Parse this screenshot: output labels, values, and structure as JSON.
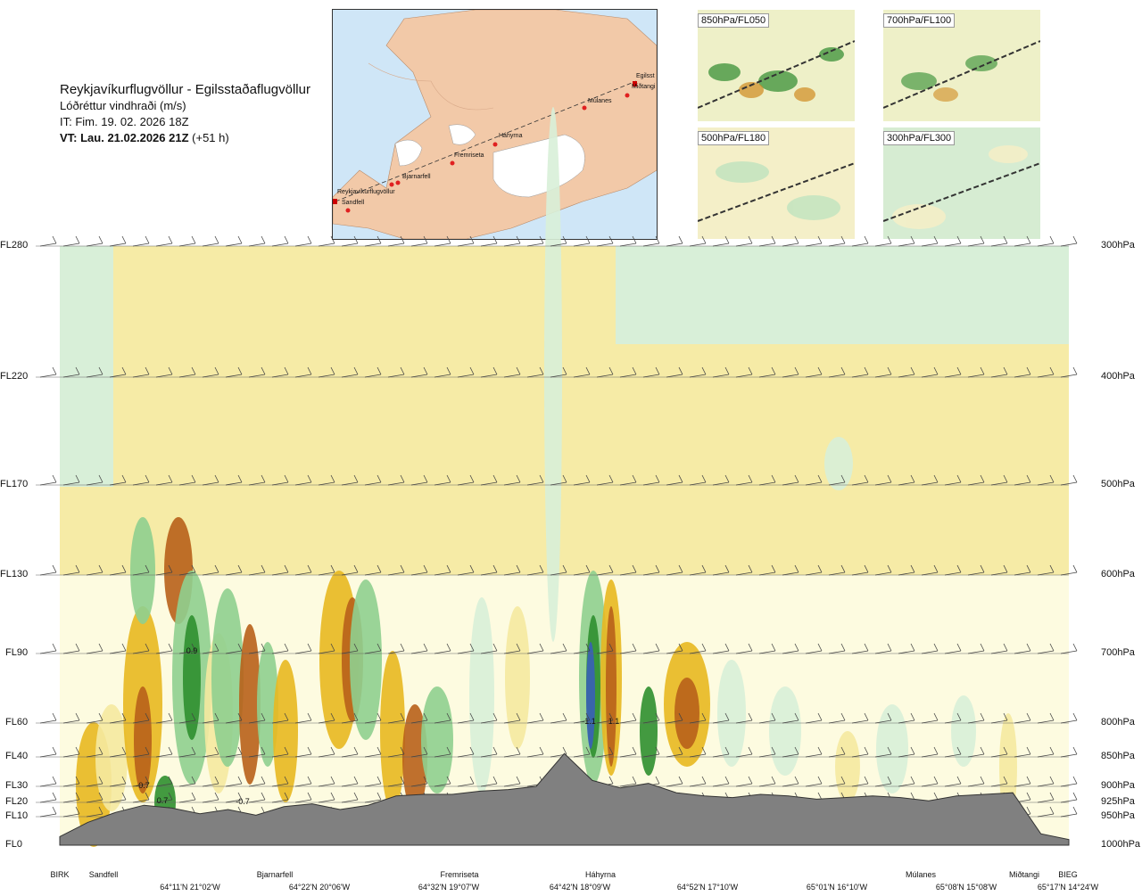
{
  "header": {
    "route": "Reykjavíkurflugvöllur - Egilsstaðaflugvöllur",
    "parameter": "Lóðréttur vindhraði (m/s)",
    "issue_time": "IT: Fim. 19. 02. 2026 18Z",
    "valid_time_bold": "VT: Lau. 21.02.2026 21Z",
    "valid_time_offset": "(+51 h)"
  },
  "map": {
    "places": [
      "Reykjavíkurflugvöllur",
      "Sandfell",
      "Bjarnarfell",
      "Fremriseta",
      "Háhyrna",
      "Múlanes",
      "Egilsst",
      "Miðtangi"
    ],
    "colors": {
      "sea": "#cfe6f7",
      "land": "#f2c9a8",
      "ice": "#ffffff",
      "route": "#333333",
      "point": "#e02020"
    }
  },
  "minis": [
    {
      "label": "850hPa/FL050"
    },
    {
      "label": "700hPa/FL100"
    },
    {
      "label": "500hPa/FL180"
    },
    {
      "label": "300hPa/FL300"
    }
  ],
  "chart_data": {
    "type": "heatmap",
    "title": "Reykjavíkurflugvöllur - Egilsstaðaflugvöllur",
    "quantity": "Lóðréttur vindhraði (m/s)",
    "levels_left": [
      "FL280",
      "FL220",
      "FL170",
      "FL130",
      "FL90",
      "FL60",
      "FL40",
      "FL30",
      "FL20",
      "FL10",
      "FL0"
    ],
    "levels_right": [
      "300hPa",
      "400hPa",
      "500hPa",
      "600hPa",
      "700hPa",
      "800hPa",
      "850hPa",
      "900hPa",
      "925hPa",
      "950hPa",
      "1000hPa"
    ],
    "level_ft": [
      28000,
      22000,
      17000,
      13000,
      9000,
      6000,
      4000,
      3000,
      2000,
      1000,
      0
    ],
    "x_labels_top": [
      "BIRK",
      "Sandfell",
      "Bjarnarfell",
      "Fremriseta",
      "Háhyrna",
      "Múlanes",
      "Miðtangi",
      "BIEG"
    ],
    "x_labels_bottom": [
      "64°11'N 21°02'W",
      "64°22'N 20°06'W",
      "64°32'N 19°07'W",
      "64°42'N 18°09'W",
      "64°52'N 17°10'W",
      "65°01'N 16°10'W",
      "65°08'N 15°08'W",
      "65°17'N 14°24'W"
    ],
    "data_labels": [
      "-0.7",
      "0.7",
      "0.9",
      "-0.7",
      "-1.1",
      "1.1"
    ],
    "terrain_ft": [
      300,
      800,
      1300,
      1800,
      1600,
      1200,
      1500,
      1100,
      1700,
      1900,
      1500,
      1800,
      2400,
      2500,
      2500,
      2700,
      2800,
      3000,
      4200,
      3200,
      2900,
      3100,
      2600,
      2400,
      2300,
      2500,
      2400,
      2200,
      2300,
      2400,
      2300,
      2100,
      2400,
      2500,
      2600,
      400,
      200
    ],
    "colors": {
      "up_strong": "#2f8f2f",
      "up": "#8fcf8f",
      "up_weak": "#d8efd8",
      "calm": "#fdfbe0",
      "down_weak": "#f5e9a0",
      "down": "#e8b820",
      "down_strong": "#b8601a",
      "max_up": "#3a5fb8",
      "terrain": "#808080"
    }
  }
}
